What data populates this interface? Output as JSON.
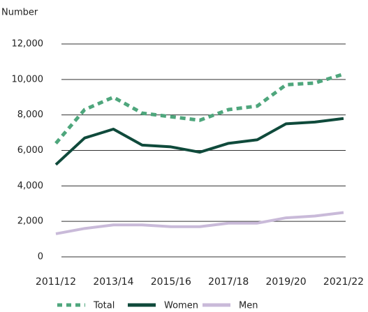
{
  "chart_data": {
    "type": "line",
    "y_label": "Number",
    "categories": [
      "2011/12",
      null,
      "2013/14",
      null,
      "2015/16",
      null,
      "2017/18",
      null,
      "2019/20",
      null,
      "2021/22"
    ],
    "series": [
      {
        "name": "Total",
        "color": "#4ea67c",
        "dashed": true,
        "values": [
          6400,
          8300,
          9000,
          8100,
          7900,
          7700,
          8300,
          8500,
          9700,
          9800,
          10300
        ]
      },
      {
        "name": "Women",
        "color": "#0f4a3b",
        "dashed": false,
        "values": [
          5200,
          6700,
          7200,
          6300,
          6200,
          5900,
          6400,
          6600,
          7500,
          7600,
          7800
        ]
      },
      {
        "name": "Men",
        "color": "#c9bad9",
        "dashed": false,
        "values": [
          1300,
          1600,
          1800,
          1800,
          1700,
          1700,
          1900,
          1900,
          2200,
          2300,
          2500
        ]
      }
    ],
    "ylim": [
      0,
      12000
    ],
    "yticks": [
      0,
      {
        "value": 2000,
        "label": "2,000"
      },
      {
        "value": 4000,
        "label": "4,000"
      },
      {
        "value": 6000,
        "label": "6,000"
      },
      {
        "value": 8000,
        "label": "8,000"
      },
      {
        "value": 10000,
        "label": "10,000"
      },
      {
        "value": 12000,
        "label": "12,000"
      }
    ],
    "grid": true,
    "legend": "bottom"
  }
}
